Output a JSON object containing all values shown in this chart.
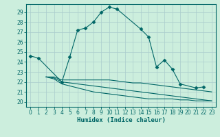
{
  "xlabel": "Humidex (Indice chaleur)",
  "background_color": "#cceedd",
  "grid_color": "#aacccc",
  "line_color": "#006666",
  "xlim": [
    -0.5,
    23.5
  ],
  "ylim": [
    19.5,
    29.8
  ],
  "yticks": [
    20,
    21,
    22,
    23,
    24,
    25,
    26,
    27,
    28,
    29
  ],
  "xticks": [
    0,
    1,
    2,
    3,
    4,
    5,
    6,
    7,
    8,
    9,
    10,
    11,
    12,
    13,
    14,
    15,
    16,
    17,
    18,
    19,
    20,
    21,
    22,
    23
  ],
  "curve1_x": [
    0,
    1,
    4,
    5,
    6,
    7,
    8,
    9,
    10,
    11,
    14,
    15,
    16,
    17,
    18,
    19,
    21,
    22
  ],
  "curve1_y": [
    24.6,
    24.4,
    22.0,
    24.5,
    27.2,
    27.4,
    28.0,
    29.0,
    29.5,
    29.3,
    27.3,
    26.5,
    23.5,
    24.2,
    23.3,
    21.8,
    21.4,
    21.5
  ],
  "curve2_x": [
    2,
    3,
    4,
    5,
    6,
    7,
    8,
    9,
    10,
    11,
    12,
    13,
    14,
    15,
    16,
    17,
    18,
    19,
    20,
    21,
    22,
    23
  ],
  "curve2_y": [
    22.5,
    22.5,
    22.2,
    22.2,
    22.2,
    22.2,
    22.2,
    22.2,
    22.2,
    22.1,
    22.0,
    21.9,
    21.9,
    21.8,
    21.7,
    21.6,
    21.5,
    21.4,
    21.3,
    21.2,
    21.1,
    21.0
  ],
  "curve3_x": [
    2,
    3,
    4,
    5,
    6,
    7,
    8,
    9,
    10,
    11,
    12,
    13,
    14,
    15,
    16,
    17,
    18,
    19,
    20,
    21,
    22,
    23
  ],
  "curve3_y": [
    22.5,
    22.4,
    22.0,
    21.9,
    21.8,
    21.7,
    21.6,
    21.5,
    21.4,
    21.3,
    21.2,
    21.1,
    21.0,
    20.9,
    20.8,
    20.7,
    20.6,
    20.5,
    20.4,
    20.3,
    20.2,
    20.1
  ],
  "curve4_x": [
    2,
    3,
    4,
    5,
    6,
    7,
    8,
    9,
    10,
    11,
    12,
    13,
    14,
    15,
    16,
    17,
    18,
    19,
    20,
    21,
    22,
    23
  ],
  "curve4_y": [
    22.5,
    22.3,
    21.8,
    21.6,
    21.4,
    21.2,
    21.0,
    20.9,
    20.8,
    20.7,
    20.6,
    20.5,
    20.4,
    20.3,
    20.3,
    20.3,
    20.3,
    20.2,
    20.2,
    20.1,
    20.1,
    20.1
  ]
}
